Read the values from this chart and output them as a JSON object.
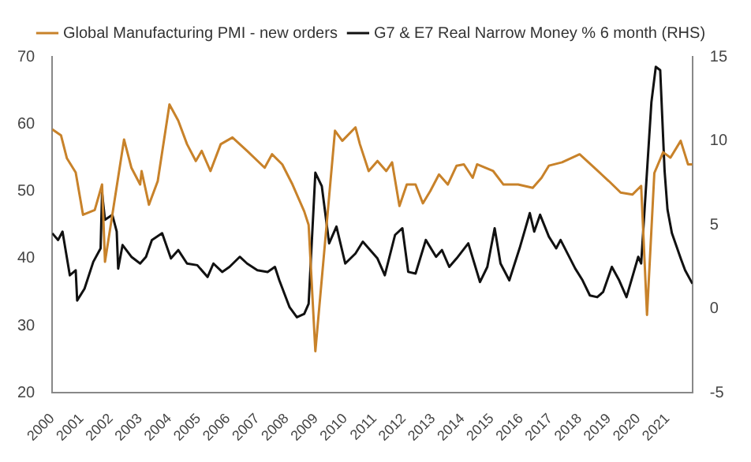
{
  "chart_data": {
    "type": "line",
    "legend": "top",
    "xlim": [
      2000,
      2021.85
    ],
    "xticks": [
      2000,
      2001,
      2002,
      2003,
      2004,
      2005,
      2006,
      2007,
      2008,
      2009,
      2010,
      2011,
      2012,
      2013,
      2014,
      2015,
      2016,
      2017,
      2018,
      2019,
      2020,
      2021
    ],
    "ylim": [
      20,
      70
    ],
    "yticks": [
      20,
      30,
      40,
      50,
      60,
      70
    ],
    "y2lim": [
      -5,
      15
    ],
    "y2ticks": [
      -5,
      0,
      5,
      10,
      15
    ],
    "series": [
      {
        "name": "Global Manufacturing PMI - new orders",
        "color": "#c8822a",
        "x": [
          2000.0,
          2000.3,
          2000.5,
          2000.8,
          2001.05,
          2001.45,
          2001.7,
          2001.8,
          2002.45,
          2002.7,
          2003.0,
          2003.05,
          2003.3,
          2003.6,
          2004.0,
          2004.3,
          2004.6,
          2004.9,
          2005.1,
          2005.4,
          2005.75,
          2006.15,
          2006.65,
          2007.25,
          2007.5,
          2007.85,
          2008.2,
          2008.6,
          2008.75,
          2008.98,
          2009.65,
          2009.9,
          2010.35,
          2010.5,
          2010.8,
          2011.1,
          2011.4,
          2011.6,
          2011.85,
          2012.1,
          2012.4,
          2012.65,
          2012.9,
          2013.2,
          2013.5,
          2013.8,
          2014.05,
          2014.35,
          2014.5,
          2015.05,
          2015.4,
          2015.9,
          2016.4,
          2016.7,
          2016.95,
          2017.4,
          2018.0,
          2018.5,
          2019.0,
          2019.4,
          2019.8,
          2020.1,
          2020.3,
          2020.55,
          2020.85,
          2021.1,
          2021.45,
          2021.7,
          2021.85
        ],
        "values": [
          59.2,
          58.3,
          54.9,
          52.8,
          46.5,
          47.2,
          51,
          39.5,
          57.7,
          53.5,
          51,
          53,
          48,
          51.5,
          62.9,
          60.5,
          57,
          54.5,
          56,
          53,
          57,
          58,
          56,
          53.5,
          55.5,
          54,
          51,
          47,
          45,
          26.2,
          59,
          57.5,
          59.5,
          57,
          53,
          54.5,
          53,
          54.3,
          47.8,
          51,
          51,
          48.2,
          50,
          52.5,
          51,
          53.8,
          54,
          52,
          54,
          53,
          51,
          51,
          50.5,
          52,
          53.8,
          54.3,
          55.5,
          53.5,
          51.5,
          49.8,
          49.5,
          50.8,
          31.6,
          52.7,
          55.8,
          55,
          57.5,
          54,
          54
        ]
      },
      {
        "name": "G7 & E7 Real Narrow Money % 6 month (RHS)",
        "color": "#111111",
        "axis": "y2",
        "x": [
          2000.0,
          2000.2,
          2000.35,
          2000.6,
          2000.8,
          2000.85,
          2001.1,
          2001.4,
          2001.65,
          2001.7,
          2001.8,
          2002.05,
          2002.2,
          2002.25,
          2002.4,
          2002.7,
          2003.0,
          2003.2,
          2003.4,
          2003.75,
          2004.05,
          2004.3,
          2004.6,
          2004.95,
          2005.3,
          2005.5,
          2005.8,
          2006.05,
          2006.4,
          2006.65,
          2007.0,
          2007.35,
          2007.6,
          2007.75,
          2008.1,
          2008.35,
          2008.6,
          2008.75,
          2008.98,
          2009.2,
          2009.45,
          2009.7,
          2010.0,
          2010.35,
          2010.6,
          2011.1,
          2011.35,
          2011.7,
          2011.95,
          2012.15,
          2012.4,
          2012.75,
          2013.1,
          2013.3,
          2013.55,
          2013.8,
          2014.2,
          2014.6,
          2014.85,
          2015.1,
          2015.3,
          2015.6,
          2015.95,
          2016.3,
          2016.45,
          2016.65,
          2016.95,
          2017.2,
          2017.35,
          2017.85,
          2018.1,
          2018.35,
          2018.6,
          2018.8,
          2019.1,
          2019.35,
          2019.6,
          2019.85,
          2020.0,
          2020.1,
          2020.45,
          2020.6,
          2020.75,
          2020.9,
          2021.0,
          2021.15,
          2021.45,
          2021.6,
          2021.85
        ],
        "values": [
          4.5,
          4.1,
          4.6,
          2.0,
          2.3,
          0.5,
          1.2,
          2.8,
          3.6,
          6.9,
          5.3,
          5.6,
          4.6,
          2.4,
          3.8,
          3.1,
          2.7,
          3.1,
          4.1,
          4.5,
          3.0,
          3.5,
          2.7,
          2.6,
          1.9,
          2.7,
          2.2,
          2.5,
          3.1,
          2.7,
          2.3,
          2.2,
          2.5,
          1.7,
          0.1,
          -0.5,
          -0.3,
          0.3,
          8.1,
          7.3,
          3.9,
          4.9,
          2.7,
          3.3,
          4.0,
          3.0,
          2.0,
          4.4,
          4.8,
          2.2,
          2.1,
          4.1,
          3.1,
          3.5,
          2.5,
          3.0,
          3.9,
          1.6,
          2.5,
          4.8,
          2.7,
          1.7,
          3.6,
          5.7,
          4.6,
          5.6,
          4.3,
          3.6,
          4.1,
          2.4,
          1.7,
          0.8,
          0.7,
          1.0,
          2.5,
          1.7,
          0.7,
          2.2,
          3.1,
          2.7,
          12.3,
          14.4,
          14.2,
          8.2,
          5.9,
          4.5,
          3.0,
          2.3,
          1.5
        ]
      }
    ]
  }
}
